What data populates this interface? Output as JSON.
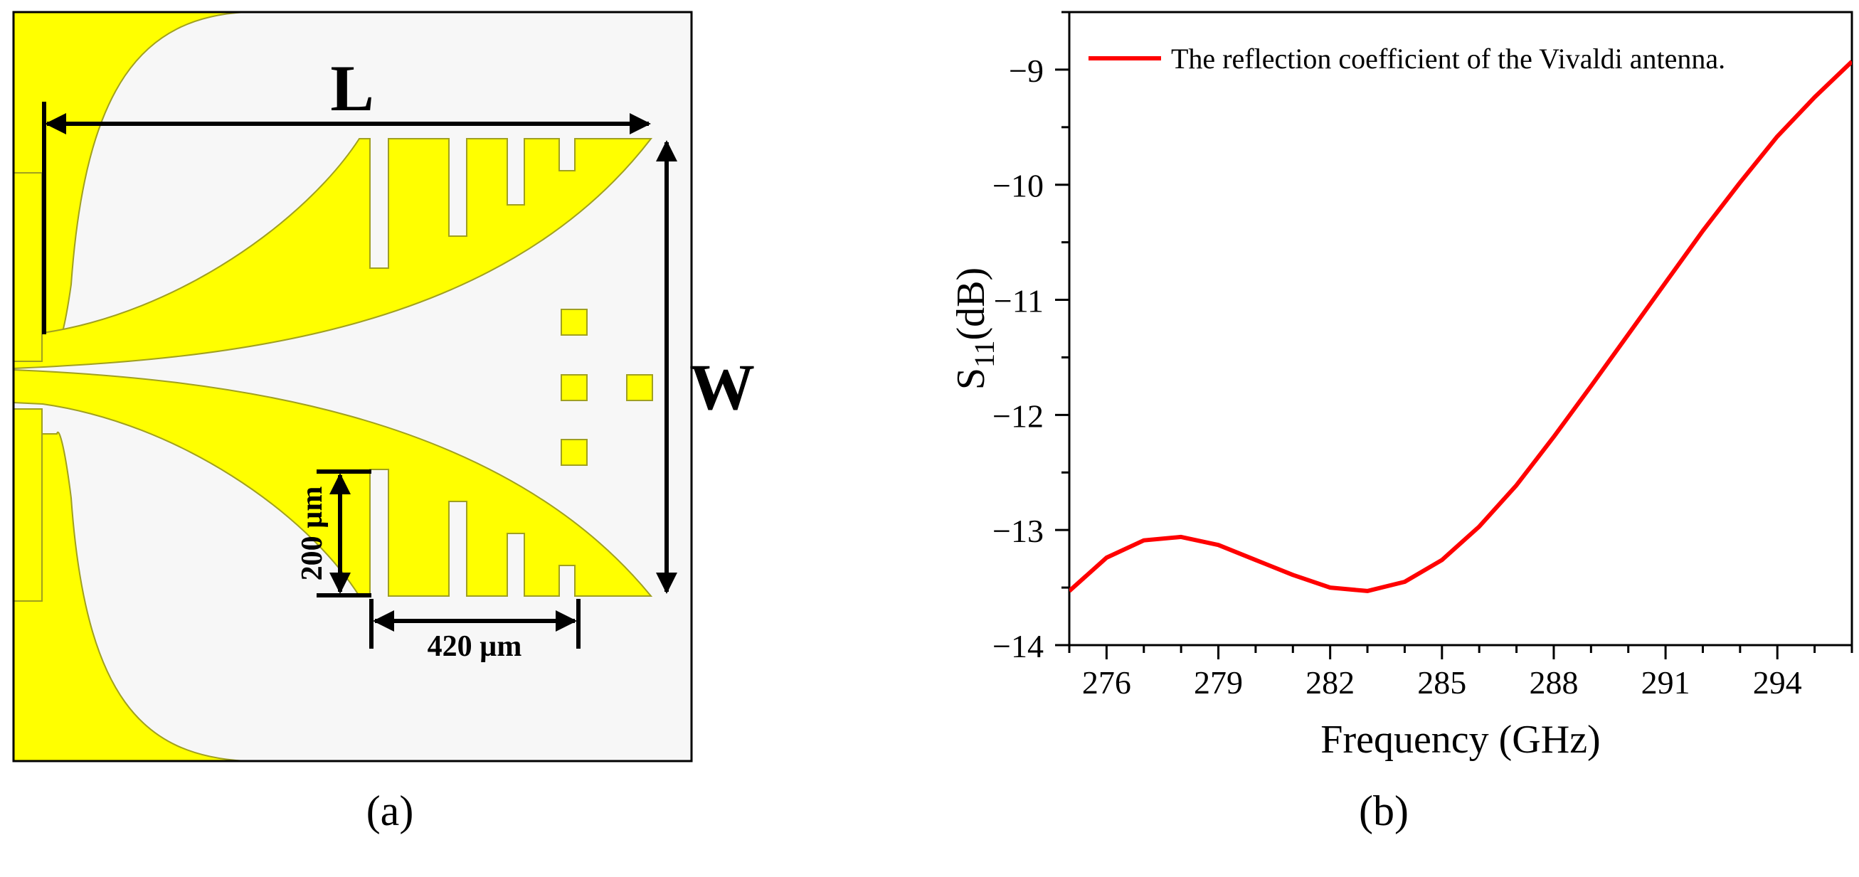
{
  "panel_a": {
    "label_L": "L",
    "label_W": "W",
    "dim_height": "200 µm",
    "dim_width": "420 µm",
    "caption": "(a)",
    "metal_color": "#FFFF00",
    "edge_color": "#A0A020",
    "substrate_color": "#F7F7F7"
  },
  "panel_b": {
    "caption": "(b)"
  },
  "chart_data": {
    "type": "line",
    "title": "",
    "xlabel": "Frequency (GHz)",
    "ylabel_main": "S",
    "ylabel_sub": "11",
    "ylabel_suffix": "(dB)",
    "xlim": [
      275,
      296
    ],
    "ylim": [
      -14,
      -8.5
    ],
    "xticks": [
      276,
      279,
      282,
      285,
      288,
      291,
      294
    ],
    "xtick_labels": [
      "276",
      "279",
      "282",
      "285",
      "288",
      "291",
      "294"
    ],
    "yticks": [
      -14,
      -13,
      -12,
      -11,
      -10,
      -9
    ],
    "ytick_labels": [
      "−14",
      "−13",
      "−12",
      "−11",
      "−10",
      "−9"
    ],
    "legend_position": "top-left",
    "series": [
      {
        "name": "The reflection coefficient of the Vivaldi antenna.",
        "color": "#FF0000",
        "x": [
          275,
          276,
          277,
          278,
          279,
          280,
          281,
          282,
          283,
          284,
          285,
          286,
          287,
          288,
          289,
          290,
          291,
          292,
          293,
          294,
          295,
          296
        ],
        "y": [
          -13.53,
          -13.24,
          -13.09,
          -13.06,
          -13.13,
          -13.26,
          -13.39,
          -13.5,
          -13.53,
          -13.45,
          -13.26,
          -12.97,
          -12.61,
          -12.19,
          -11.75,
          -11.3,
          -10.85,
          -10.4,
          -9.98,
          -9.58,
          -9.24,
          -8.93
        ]
      }
    ]
  }
}
